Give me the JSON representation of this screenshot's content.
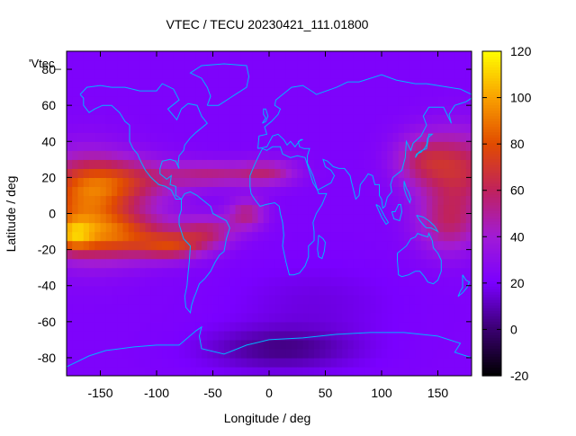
{
  "chart_data": {
    "type": "heatmap",
    "title": "VTEC / TECU 20230421_111.01800",
    "key_label": "'Vtec_",
    "xlabel": "Longitude / deg",
    "ylabel": "Latitude / deg",
    "xlim": [
      -180,
      180
    ],
    "ylim": [
      -90,
      90
    ],
    "x_ticks": [
      -150,
      -100,
      -50,
      0,
      50,
      100,
      150
    ],
    "y_ticks": [
      -80,
      -60,
      -40,
      -20,
      0,
      20,
      40,
      60,
      80
    ],
    "colorbar": {
      "min": -20,
      "max": 120,
      "ticks": [
        -20,
        0,
        20,
        40,
        60,
        80,
        100,
        120
      ],
      "palette": [
        "#000000",
        "#3a0070",
        "#7a00ff",
        "#a11bd6",
        "#c0225c",
        "#e14b00",
        "#f9a100",
        "#ffff00"
      ]
    },
    "approx_values": {
      "background": 22,
      "equatorial_anomaly_pacific_peak": 110,
      "equatorial_anomaly_western_pacific": 70,
      "atlantic_african_band": 55,
      "southern_ocean_minimum": 5
    },
    "grid": false,
    "overlay": "coastlines"
  },
  "colors": {
    "coastline": "#00b4ff",
    "frame": "#000000"
  }
}
